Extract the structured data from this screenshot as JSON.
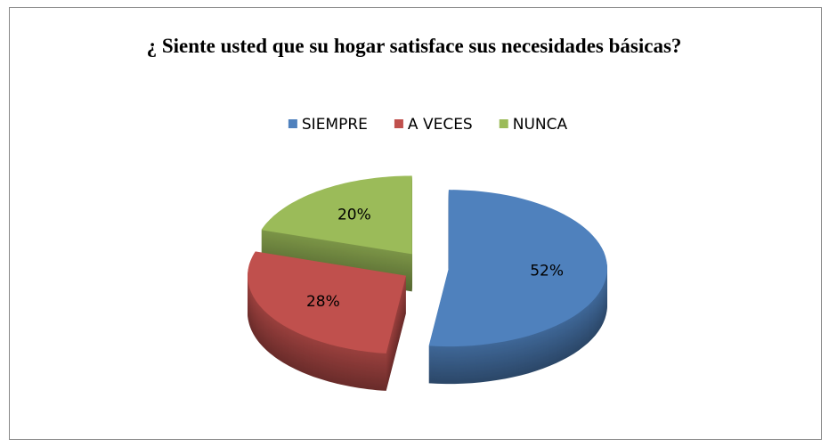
{
  "chart_data": {
    "type": "pie",
    "title": "¿ Siente usted que su hogar satisface sus necesidades básicas?",
    "categories": [
      "SIEMPRE",
      "A VECES",
      "NUNCA"
    ],
    "values": [
      52,
      28,
      20
    ],
    "value_labels": [
      "52%",
      "28%",
      "20%"
    ],
    "colors": [
      "#4f81bd",
      "#c0504d",
      "#9bbb59"
    ],
    "legend": "top"
  }
}
